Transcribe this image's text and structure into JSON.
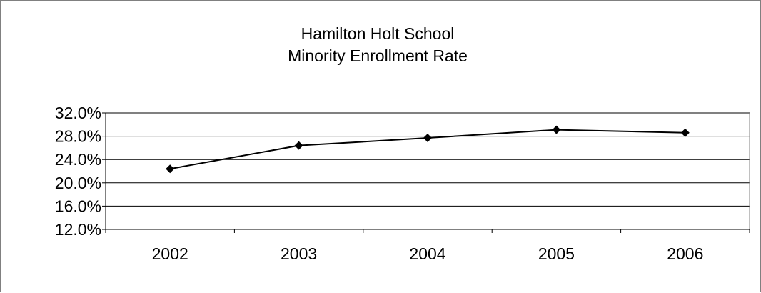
{
  "chart_data": {
    "type": "line",
    "title_lines": [
      "Hamilton Holt School",
      "Minority Enrollment Rate"
    ],
    "xlabel": "",
    "ylabel": "",
    "categories": [
      "2002",
      "2003",
      "2004",
      "2005",
      "2006"
    ],
    "series": [
      {
        "values": [
          0.224,
          0.264,
          0.277,
          0.291,
          0.286
        ]
      }
    ],
    "ylim": [
      0.12,
      0.32
    ],
    "y_ticks": [
      0.12,
      0.16,
      0.2,
      0.24,
      0.28,
      0.32
    ],
    "y_tick_labels": [
      "12.0%",
      "16.0%",
      "20.0%",
      "24.0%",
      "28.0%",
      "32.0%"
    ],
    "grid": "horizontal",
    "legend": "none",
    "line_color": "#000000",
    "marker": "diamond"
  }
}
